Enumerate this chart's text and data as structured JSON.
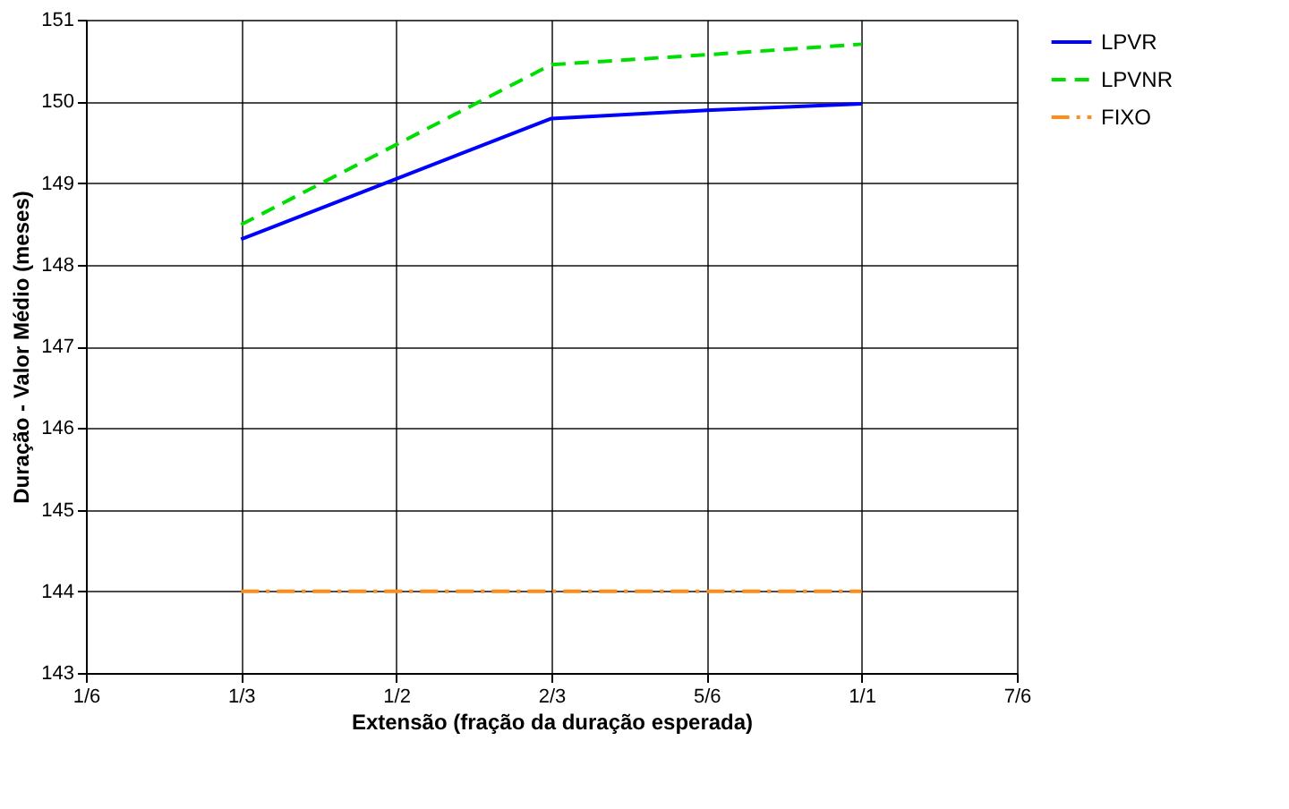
{
  "chart_data": {
    "type": "line",
    "xlabel": "Extensão (fração da duração esperada)",
    "ylabel": "Duração - Valor Médio (meses)",
    "x": [
      0.3333,
      0.5,
      0.6667,
      0.8333,
      1.0
    ],
    "series": [
      {
        "name": "LPVR",
        "color": "#0000ff",
        "line_style": "solid",
        "values": [
          148.31,
          149.05,
          149.79,
          149.89,
          149.97
        ]
      },
      {
        "name": "LPVNR",
        "color": "#00dd00",
        "line_style": "dashed",
        "values": [
          148.49,
          149.47,
          150.45,
          150.57,
          150.7
        ]
      },
      {
        "name": "FIXO",
        "color": "#ff8c1a",
        "line_style": "dashdot",
        "values": [
          144,
          144,
          144,
          144,
          144
        ]
      }
    ],
    "xlim": [
      0.1667,
      1.1667
    ],
    "xticks": [
      {
        "value": 0.1667,
        "label": "1/6"
      },
      {
        "value": 0.3333,
        "label": "1/3"
      },
      {
        "value": 0.5,
        "label": "1/2"
      },
      {
        "value": 0.6667,
        "label": "2/3"
      },
      {
        "value": 0.8333,
        "label": "5/6"
      },
      {
        "value": 1.0,
        "label": "1/1"
      },
      {
        "value": 1.1667,
        "label": "7/6"
      }
    ],
    "ylim": [
      143,
      151
    ],
    "yticks": [
      143,
      144,
      145,
      146,
      147,
      148,
      149,
      150,
      151
    ],
    "grid": true,
    "legend": "right"
  }
}
